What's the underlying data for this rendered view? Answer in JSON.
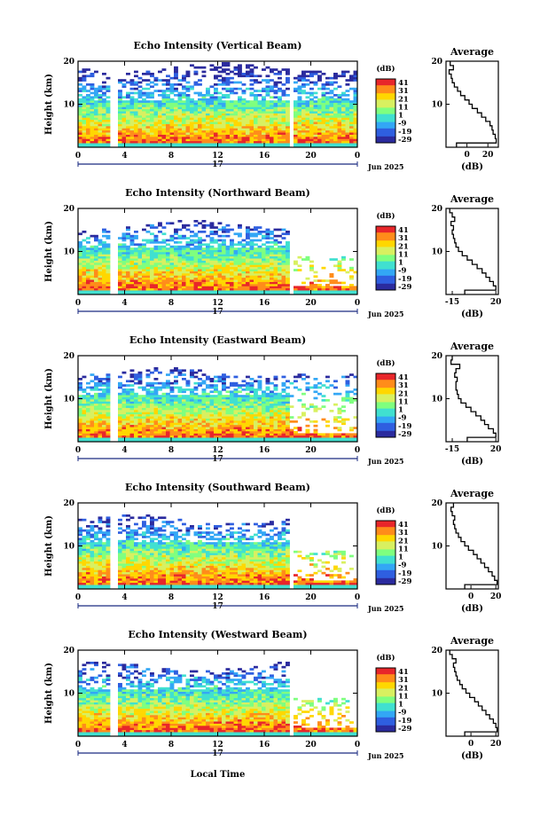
{
  "figure": {
    "x_axis_label": "Local Time",
    "time_ticks": [
      "0",
      "4",
      "8",
      "12",
      "16",
      "20",
      "0"
    ],
    "date_day": "17",
    "date_label": "Jun 2025",
    "height_label": "Height (km)",
    "colorbar_unit": "(dB)",
    "colorbar_ticks": [
      "41",
      "31",
      "21",
      "11",
      "1",
      "-9",
      "-19",
      "-29"
    ],
    "colormap": [
      "#2b2b9e",
      "#2f5fe0",
      "#33a7f5",
      "#40e0d0",
      "#7fff7f",
      "#d8f060",
      "#ffd700",
      "#ff8c1a",
      "#e8262a"
    ],
    "profile_title": "Average",
    "profile_xlabel": "(dB)"
  },
  "chart_data": [
    {
      "type": "heatmap",
      "title": "Echo Intensity (Vertical Beam)",
      "x_range": [
        0,
        24
      ],
      "y_range": [
        0,
        20
      ],
      "y_ticks": [
        10,
        20
      ],
      "profile": {
        "type": "line",
        "xticks": [
          "0",
          "20"
        ],
        "xlim": [
          -20,
          30
        ],
        "heights": [
          1,
          2,
          3,
          4,
          5,
          6,
          7,
          8,
          9,
          10,
          11,
          12,
          13,
          14,
          15,
          16,
          17,
          18,
          19,
          20
        ],
        "values": [
          -10,
          28,
          27,
          25,
          24,
          22,
          18,
          14,
          10,
          5,
          2,
          -2,
          -6,
          -9,
          -12,
          -14,
          -15,
          -17,
          -13,
          -16
        ]
      }
    },
    {
      "type": "heatmap",
      "title": "Echo Intensity (Northward Beam)",
      "x_range": [
        0,
        24
      ],
      "y_range": [
        0,
        20
      ],
      "y_ticks": [
        10,
        20
      ],
      "profile": {
        "type": "line",
        "xticks": [
          "-15",
          "20"
        ],
        "xlim": [
          -20,
          22
        ],
        "heights": [
          1,
          2,
          3,
          4,
          5,
          6,
          7,
          8,
          9,
          10,
          11,
          12,
          13,
          14,
          15,
          16,
          17,
          18,
          19,
          20
        ],
        "values": [
          -5,
          20,
          18,
          15,
          12,
          9,
          5,
          1,
          -3,
          -7,
          -10,
          -12,
          -13,
          -14,
          -15,
          -14,
          -16,
          -13,
          -15,
          -17
        ]
      }
    },
    {
      "type": "heatmap",
      "title": "Echo Intensity (Eastward Beam)",
      "x_range": [
        0,
        24
      ],
      "y_range": [
        0,
        20
      ],
      "y_ticks": [
        10,
        20
      ],
      "profile": {
        "type": "line",
        "xticks": [
          "-15",
          "20"
        ],
        "xlim": [
          -20,
          22
        ],
        "heights": [
          1,
          2,
          3,
          4,
          5,
          6,
          7,
          8,
          9,
          10,
          11,
          12,
          13,
          14,
          15,
          16,
          17,
          18,
          19,
          20
        ],
        "values": [
          -3,
          20,
          18,
          14,
          11,
          8,
          4,
          0,
          -4,
          -8,
          -10,
          -11,
          -12,
          -12,
          -11,
          -13,
          -12,
          -9,
          -16,
          -15
        ]
      }
    },
    {
      "type": "heatmap",
      "title": "Echo Intensity (Southward Beam)",
      "x_range": [
        0,
        24
      ],
      "y_range": [
        0,
        20
      ],
      "y_ticks": [
        10,
        20
      ],
      "profile": {
        "type": "line",
        "xticks": [
          "0",
          "20"
        ],
        "xlim": [
          -20,
          22
        ],
        "heights": [
          1,
          2,
          3,
          4,
          5,
          6,
          7,
          8,
          9,
          10,
          11,
          12,
          13,
          14,
          15,
          16,
          17,
          18,
          19,
          20
        ],
        "values": [
          -5,
          21,
          19,
          17,
          14,
          11,
          8,
          5,
          2,
          -2,
          -5,
          -8,
          -10,
          -12,
          -13,
          -14,
          -13,
          -15,
          -16,
          -14
        ]
      }
    },
    {
      "type": "heatmap",
      "title": "Echo Intensity (Westward Beam)",
      "x_range": [
        0,
        24
      ],
      "y_range": [
        0,
        20
      ],
      "y_ticks": [
        10,
        20
      ],
      "profile": {
        "type": "line",
        "xticks": [
          "0",
          "20"
        ],
        "xlim": [
          -20,
          22
        ],
        "heights": [
          1,
          2,
          3,
          4,
          5,
          6,
          7,
          8,
          9,
          10,
          11,
          12,
          13,
          14,
          15,
          16,
          17,
          18,
          19,
          20
        ],
        "values": [
          -5,
          21,
          20,
          18,
          15,
          12,
          9,
          6,
          3,
          -1,
          -4,
          -7,
          -9,
          -11,
          -12,
          -13,
          -14,
          -12,
          -15,
          -17
        ]
      }
    }
  ]
}
